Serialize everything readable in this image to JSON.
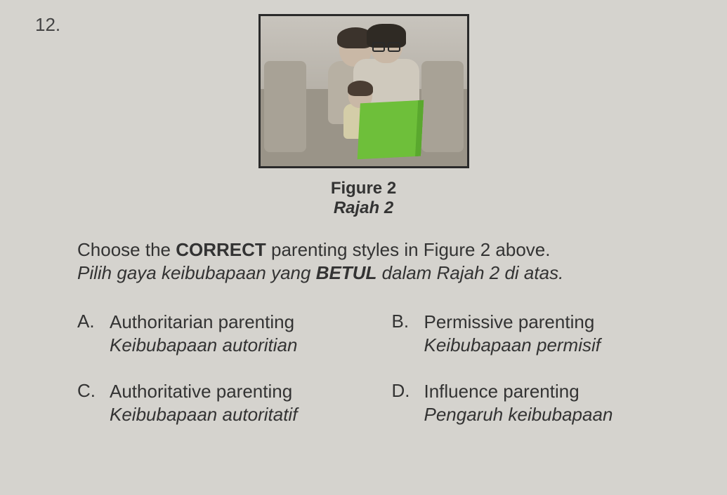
{
  "question_number": "12.",
  "figure": {
    "caption_en": "Figure 2",
    "caption_ms": "Rajah 2",
    "border_color": "#2a2a2a",
    "book_color": "#6ebf3a"
  },
  "instruction": {
    "en_pre": "Choose the ",
    "en_bold": "CORRECT",
    "en_post": " parenting styles in Figure 2 above.",
    "ms_pre": "Pilih gaya keibubapaan yang ",
    "ms_bold": "BETUL",
    "ms_post": " dalam Rajah 2 di atas."
  },
  "options": {
    "a": {
      "letter": "A.",
      "en": "Authoritarian parenting",
      "ms": "Keibubapaan autoritian"
    },
    "b": {
      "letter": "B.",
      "en": "Permissive parenting",
      "ms": "Keibubapaan permisif"
    },
    "c": {
      "letter": "C.",
      "en": "Authoritative parenting",
      "ms": "Keibubapaan autoritatif"
    },
    "d": {
      "letter": "D.",
      "en": "Influence parenting",
      "ms": "Pengaruh keibubapaan"
    }
  },
  "colors": {
    "page_bg": "#d5d3ce",
    "text": "#333333"
  }
}
